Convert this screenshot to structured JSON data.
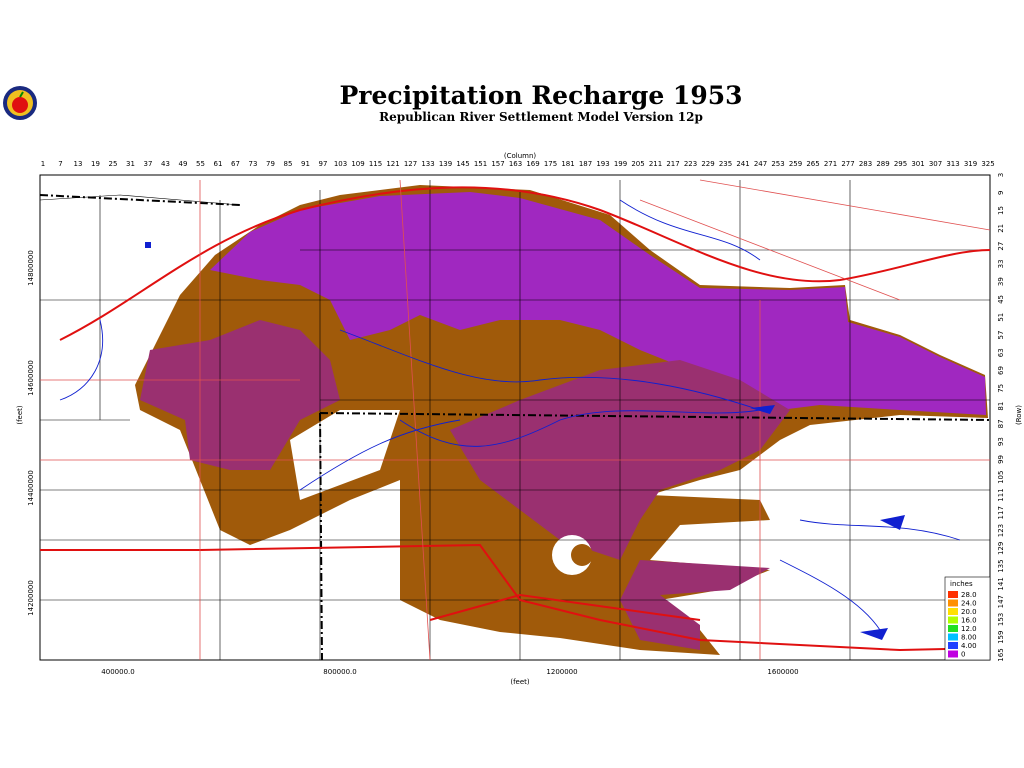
{
  "header": {
    "title": "Precipitation Recharge 1953",
    "subtitle": "Republican River Settlement Model Version 12p"
  },
  "axes": {
    "top_label": "(Column)",
    "right_label": "(Row)",
    "bottom_label": "(feet)",
    "left_label": "(feet)",
    "columns": [
      1,
      7,
      13,
      19,
      25,
      31,
      37,
      43,
      49,
      55,
      61,
      67,
      73,
      79,
      85,
      91,
      97,
      103,
      109,
      115,
      121,
      127,
      133,
      139,
      145,
      151,
      157,
      163,
      169,
      175,
      181,
      187,
      193,
      199,
      205,
      211,
      217,
      223,
      229,
      235,
      241,
      247,
      253,
      259,
      265,
      271,
      277,
      283,
      289,
      295,
      301,
      307,
      313,
      319,
      325
    ],
    "rows": [
      3,
      9,
      15,
      21,
      27,
      33,
      39,
      45,
      51,
      57,
      63,
      69,
      75,
      81,
      87,
      93,
      99,
      105,
      111,
      117,
      123,
      129,
      135,
      141,
      147,
      153,
      159,
      165
    ],
    "x_ticks": [
      "400000.0",
      "800000.0",
      "1200000",
      "1600000"
    ],
    "y_ticks": [
      "14800000",
      "14600000",
      "14400000",
      "14200000"
    ]
  },
  "legend": {
    "title": "inches",
    "entries": [
      {
        "label": "28.0",
        "color": "#ff3000"
      },
      {
        "label": "24.0",
        "color": "#ff9000"
      },
      {
        "label": "20.0",
        "color": "#ffe000"
      },
      {
        "label": "16.0",
        "color": "#b0ff00"
      },
      {
        "label": "12.0",
        "color": "#20e020"
      },
      {
        "label": "8.00",
        "color": "#00c0ff"
      },
      {
        "label": "4.00",
        "color": "#2040ff"
      },
      {
        "label": "0",
        "color": "#c000e0"
      }
    ]
  }
}
